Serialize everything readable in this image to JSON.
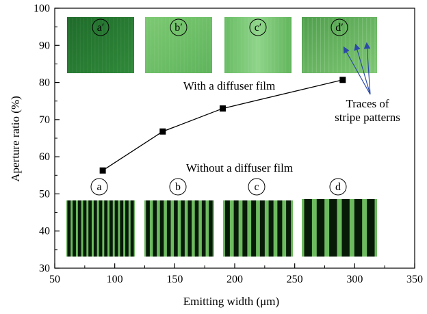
{
  "colors": {
    "green_dark": "#1f6b2a",
    "green_mid": "#5fb45c",
    "green_light": "#8fd48a",
    "stripe_dark": "#071a08",
    "stripe_green": "#6dbb5f",
    "arrow": "#2b4aa8",
    "marker": "#000000"
  },
  "icons": {
    "marker": "filled-square-marker",
    "photo_diffused": "green-diffused-photo",
    "photo_striped": "striped-pixel-photo",
    "arrow": "blue-arrow"
  },
  "chart_data": {
    "type": "line",
    "x": [
      90,
      140,
      190,
      290
    ],
    "series": [
      {
        "values": [
          56.3,
          66.8,
          73.0,
          80.7
        ]
      }
    ],
    "title": "",
    "xlabel": "Emitting width (μm)",
    "ylabel": "Aperture ratio (%)",
    "xlim": [
      50,
      350
    ],
    "ylim": [
      30,
      100
    ],
    "xticks": [
      "50",
      "100",
      "150",
      "200",
      "250",
      "300",
      "350"
    ],
    "yticks": [
      "30",
      "40",
      "50",
      "60",
      "70",
      "80",
      "90",
      "100"
    ],
    "grid": false,
    "annotations": {
      "with_film": "With a diffuser film",
      "without_film": "Without a diffuser film",
      "traces_line1": "Traces of",
      "traces_line2": "stripe patterns"
    },
    "inset_labels_top": [
      "a′",
      "b′",
      "c′",
      "d′"
    ],
    "inset_labels_bottom": [
      "a",
      "b",
      "c",
      "d"
    ]
  }
}
